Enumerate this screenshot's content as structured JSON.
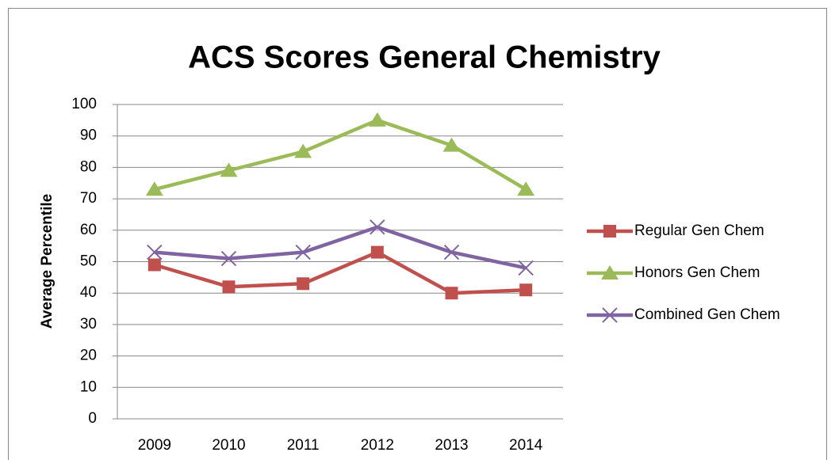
{
  "chart_data": {
    "type": "line",
    "title": "ACS Scores General Chemistry",
    "y_label": "Average Percentile",
    "categories": [
      "2009",
      "2010",
      "2011",
      "2012",
      "2013",
      "2014"
    ],
    "series": [
      {
        "name": "Regular Gen Chem",
        "color": "#c0504d",
        "marker": "square",
        "values": [
          49,
          42,
          43,
          53,
          40,
          41
        ]
      },
      {
        "name": "Honors Gen Chem",
        "color": "#9bbb59",
        "marker": "triangle",
        "values": [
          73,
          79,
          85,
          95,
          87,
          73
        ]
      },
      {
        "name": "Combined Gen Chem",
        "color": "#8064a2",
        "marker": "x",
        "values": [
          53,
          51,
          53,
          61,
          53,
          48
        ]
      }
    ],
    "ylim": [
      0,
      100
    ],
    "yticks": [
      0,
      10,
      20,
      30,
      40,
      50,
      60,
      70,
      80,
      90,
      100
    ],
    "grid": true,
    "legend": "right"
  }
}
